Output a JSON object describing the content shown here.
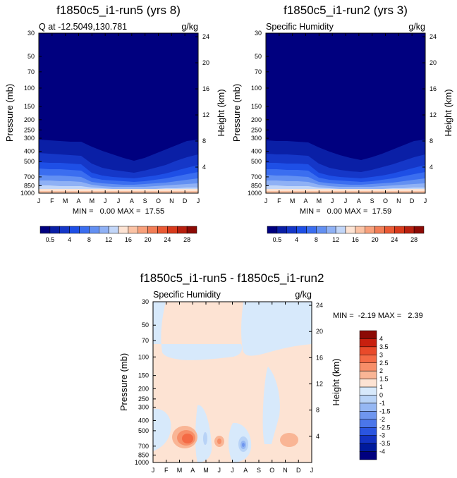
{
  "chart_data": [
    {
      "type": "heatmap",
      "title": "f1850c5_i1-run5 (yrs 8)",
      "subtitle_left": "Q at -12.5049,130.781",
      "subtitle_right": "g/kg",
      "ylabel": "Pressure (mb)",
      "ylabel_right": "Height (km)",
      "x_ticks": [
        "J",
        "F",
        "M",
        "A",
        "M",
        "J",
        "J",
        "A",
        "S",
        "O",
        "N",
        "D",
        "J"
      ],
      "y_ticks": [
        "30",
        "50",
        "70",
        "100",
        "150",
        "200",
        "250",
        "300",
        "400",
        "500",
        "700",
        "850",
        "1000"
      ],
      "y_ticks_right": [
        "24",
        "20",
        "16",
        "12",
        "8",
        "4"
      ],
      "stats": "MIN =   0.00 MAX =  17.55",
      "min": 0.0,
      "max": 17.55,
      "colorbar_labels": [
        "0.5",
        "4",
        "8",
        "12",
        "16",
        "20",
        "24",
        "28"
      ],
      "colorbar_colors": [
        "#00007f",
        "#0a1fa6",
        "#1537c8",
        "#1e4fe6",
        "#3b6ef0",
        "#6390f2",
        "#8fb1f5",
        "#c2d6f8",
        "#fde3d3",
        "#fbc3a5",
        "#f8a07b",
        "#f27d56",
        "#ea5a34",
        "#d83a1c",
        "#b8200f",
        "#8c0a05"
      ]
    },
    {
      "type": "heatmap",
      "title": "f1850c5_i1-run2 (yrs 3)",
      "subtitle_left": "Specific Humidity",
      "subtitle_right": "g/kg",
      "ylabel": "Pressure (mb)",
      "ylabel_right": "Height (km)",
      "x_ticks": [
        "J",
        "F",
        "M",
        "A",
        "M",
        "J",
        "J",
        "A",
        "S",
        "O",
        "N",
        "D",
        "J"
      ],
      "y_ticks": [
        "30",
        "50",
        "70",
        "100",
        "150",
        "200",
        "250",
        "300",
        "400",
        "500",
        "700",
        "850",
        "1000"
      ],
      "y_ticks_right": [
        "24",
        "20",
        "16",
        "12",
        "8",
        "4"
      ],
      "stats": "MIN =   0.00 MAX =  17.59",
      "min": 0.0,
      "max": 17.59,
      "colorbar_labels": [
        "0.5",
        "4",
        "8",
        "12",
        "16",
        "20",
        "24",
        "28"
      ],
      "colorbar_colors": [
        "#00007f",
        "#0a1fa6",
        "#1537c8",
        "#1e4fe6",
        "#3b6ef0",
        "#6390f2",
        "#8fb1f5",
        "#c2d6f8",
        "#fde3d3",
        "#fbc3a5",
        "#f8a07b",
        "#f27d56",
        "#ea5a34",
        "#d83a1c",
        "#b8200f",
        "#8c0a05"
      ]
    },
    {
      "type": "heatmap",
      "title": "f1850c5_i1-run5 - f1850c5_i1-run2",
      "subtitle_left": "Specific Humidity",
      "subtitle_right": "g/kg",
      "ylabel": "Pressure (mb)",
      "ylabel_right": "Height (km)",
      "x_ticks": [
        "J",
        "F",
        "M",
        "A",
        "M",
        "J",
        "J",
        "A",
        "S",
        "O",
        "N",
        "D",
        "J"
      ],
      "y_ticks": [
        "30",
        "50",
        "70",
        "100",
        "150",
        "200",
        "250",
        "300",
        "400",
        "500",
        "700",
        "850",
        "1000"
      ],
      "y_ticks_right": [
        "24",
        "20",
        "16",
        "12",
        "8",
        "4"
      ],
      "stats": "MIN =  -2.19 MAX =   2.39",
      "min": -2.19,
      "max": 2.39,
      "colorbar_labels": [
        "4",
        "3.5",
        "3",
        "2.5",
        "2",
        "1.5",
        "1",
        "0",
        "-1",
        "-1.5",
        "-2",
        "-2.5",
        "-3",
        "-3.5",
        "-4"
      ],
      "colorbar_colors": [
        "#8c0a05",
        "#c8200f",
        "#e94a2a",
        "#f46a45",
        "#f78e68",
        "#f9b595",
        "#fde3d3",
        "#d7e9fb",
        "#b8d3f7",
        "#95b7f3",
        "#6f96ef",
        "#4b76ea",
        "#2a55e0",
        "#1232c2",
        "#001a9c",
        "#00007f"
      ]
    }
  ]
}
